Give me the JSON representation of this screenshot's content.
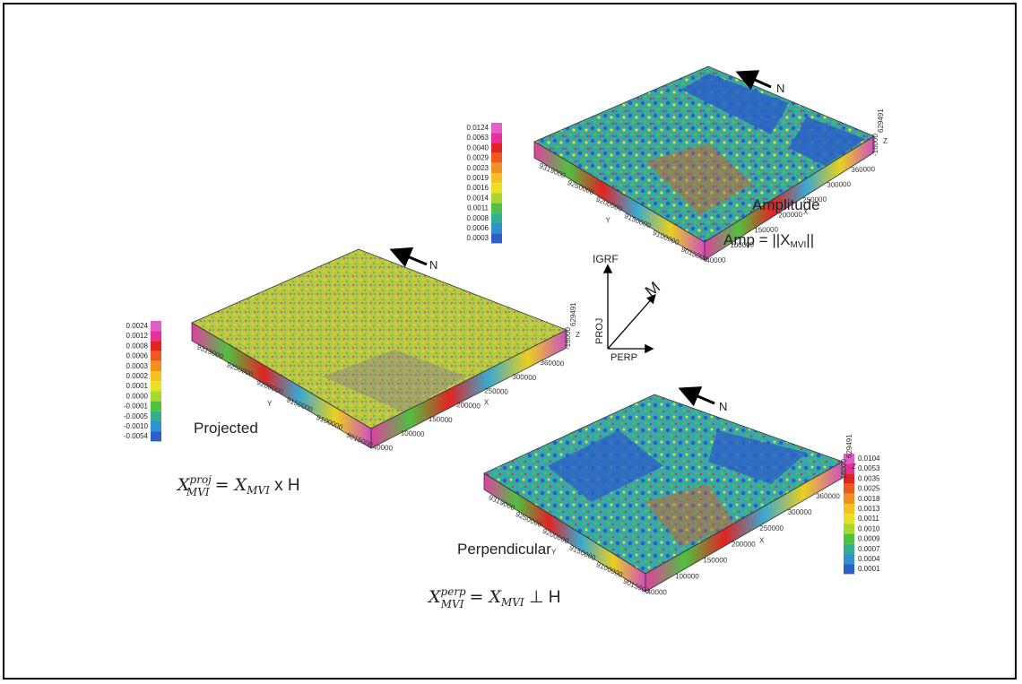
{
  "north_label": "N",
  "axes": {
    "igrf": "IGRF",
    "proj": "PROJ",
    "perp": "PERP",
    "m": "M"
  },
  "amplitude": {
    "title": "Amplitude",
    "formula_lhs": "Amp = ||X",
    "formula_sub": "MVI",
    "formula_rhs": "||",
    "colorbar": [
      "0.0124",
      "0.0063",
      "0.0040",
      "0.0029",
      "0.0023",
      "0.0019",
      "0.0016",
      "0.0014",
      "0.0011",
      "0.0008",
      "0.0006",
      "0.0003"
    ],
    "y_ticks": [
      "9319000",
      "9250000",
      "9200000",
      "9150000",
      "9100000",
      "9015000"
    ],
    "y_label": "Y",
    "x_ticks": [
      "40000",
      "100000",
      "150000",
      "200000",
      "250000",
      "300000",
      "360000"
    ],
    "x_label": "X",
    "z_ticks": [
      "-16000",
      "629491"
    ],
    "z_label": "Z"
  },
  "projected": {
    "title": "Projected",
    "formula_x": "X",
    "formula_sup": "proj",
    "formula_sub": "MVI",
    "formula_eq": " = ",
    "formula_x2": "X",
    "formula_sub2": "MVI",
    "formula_rhs": " x H",
    "colorbar": [
      "0.0024",
      "0.0012",
      "0.0008",
      "0.0006",
      "0.0003",
      "0.0002",
      "0.0001",
      "0.0000",
      "-0.0001",
      "-0.0005",
      "-0.0010",
      "-0.0054"
    ],
    "y_ticks": [
      "9319000",
      "9250000",
      "9200000",
      "9150000",
      "9100000",
      "9015000"
    ],
    "y_label": "Y",
    "x_ticks": [
      "40000",
      "100000",
      "150000",
      "200000",
      "250000",
      "300000",
      "360000"
    ],
    "x_label": "X",
    "z_ticks": [
      "-16000",
      "629491"
    ],
    "z_label": "Z"
  },
  "perpendicular": {
    "title": "Perpendicular",
    "formula_x": "X",
    "formula_sup": "perp",
    "formula_sub": "MVI",
    "formula_eq": " = ",
    "formula_x2": "X",
    "formula_sub2": "MVI",
    "formula_rhs": " ⊥ H",
    "colorbar": [
      "0.0104",
      "0.0053",
      "0.0035",
      "0.0025",
      "0.0018",
      "0.0013",
      "0.0011",
      "0.0010",
      "0.0009",
      "0.0007",
      "0.0004",
      "0.0001"
    ],
    "y_ticks": [
      "9319000",
      "9250000",
      "9200000",
      "9150000",
      "9100000",
      "9015000"
    ],
    "y_label": "Y",
    "x_ticks": [
      "40000",
      "100000",
      "150000",
      "200000",
      "250000",
      "300000",
      "360000"
    ],
    "x_label": "X",
    "z_ticks": [
      "-16000",
      "629491"
    ],
    "z_label": "Z"
  },
  "colors": {
    "ramp": [
      "#e060c8",
      "#e8309a",
      "#e02424",
      "#ec5a20",
      "#f09020",
      "#f5c020",
      "#e8e020",
      "#a8d830",
      "#50c040",
      "#30b090",
      "#3090d0",
      "#2a60c8"
    ]
  }
}
